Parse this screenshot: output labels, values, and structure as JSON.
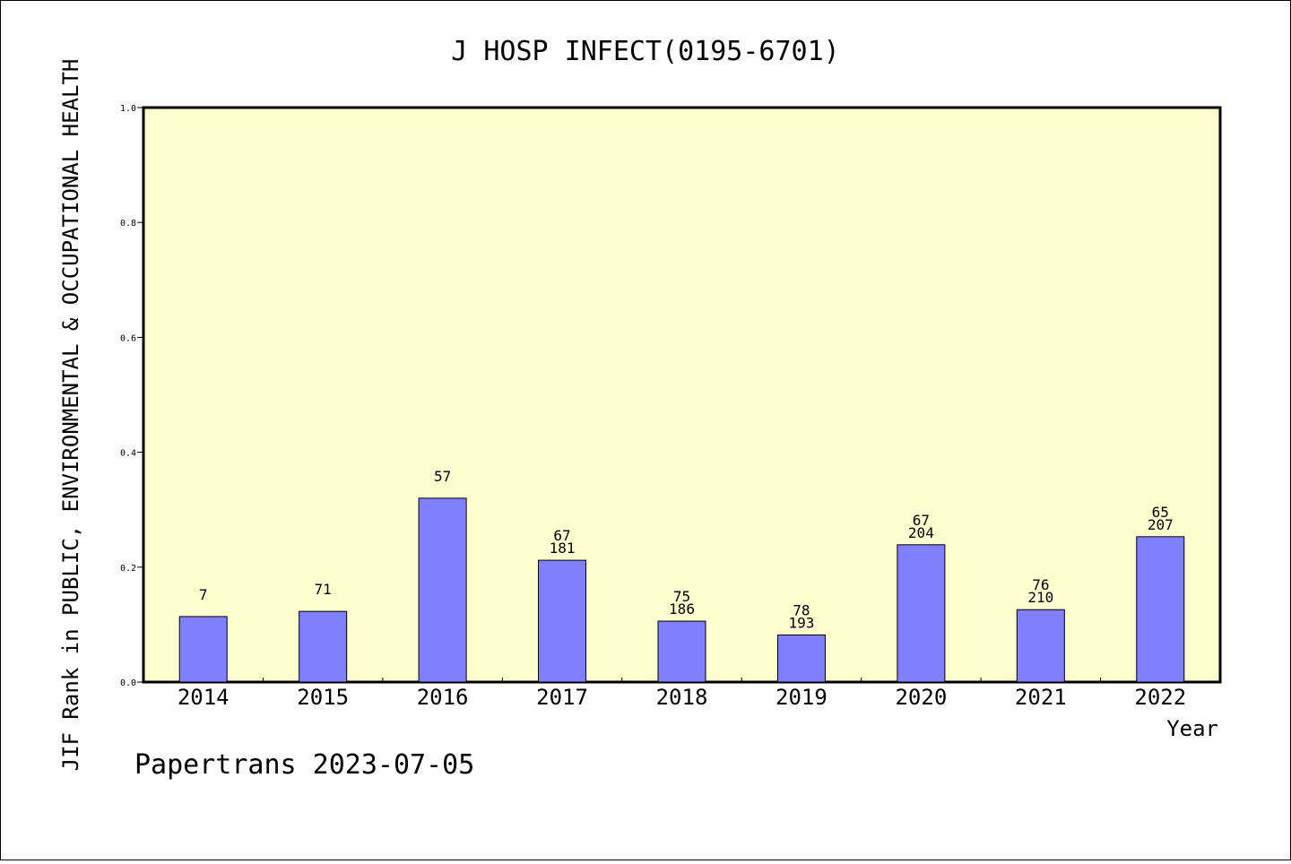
{
  "chart_data": {
    "type": "bar",
    "title": "J HOSP INFECT(0195-6701)",
    "xlabel": "Year",
    "ylabel": "JIF Rank in PUBLIC, ENVIRONMENTAL & OCCUPATIONAL HEALTH",
    "ylim": [
      0,
      1.0
    ],
    "yticks": [
      "0.0",
      "0.2",
      "0.4",
      "0.6",
      "0.8",
      "1.0"
    ],
    "categories": [
      "2014",
      "2015",
      "2016",
      "2017",
      "2018",
      "2019",
      "2020",
      "2021",
      "2022"
    ],
    "values": [
      0.114,
      0.123,
      0.32,
      0.212,
      0.106,
      0.082,
      0.239,
      0.126,
      0.253
    ],
    "labels_top": [
      "",
      "",
      "",
      "67",
      "75",
      "78",
      "67",
      "76",
      "65"
    ],
    "labels_bottom": [
      "7",
      "71",
      "57",
      "181",
      "186",
      "193",
      "204",
      "210",
      "207"
    ],
    "grid": false,
    "legend": "none"
  },
  "colors": {
    "plot_background": "#ffffd0",
    "bar_fill": "#8080ff",
    "bar_stroke": "#000000"
  },
  "footer": {
    "credit": "Papertrans 2023-07-05"
  }
}
